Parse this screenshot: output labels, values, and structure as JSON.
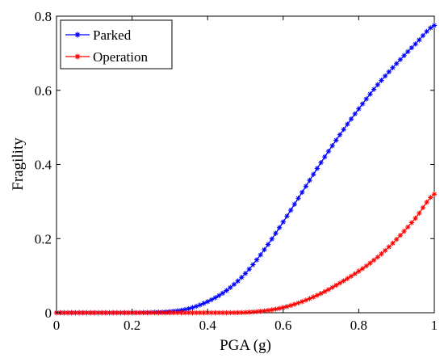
{
  "chart_data": {
    "type": "line",
    "xlabel": "PGA (g)",
    "ylabel": "Fragility",
    "xlim": [
      0,
      1
    ],
    "ylim": [
      0,
      0.8
    ],
    "xticks": [
      "0",
      "0.2",
      "0.4",
      "0.6",
      "0.8",
      "1"
    ],
    "yticks": [
      "0",
      "0.2",
      "0.4",
      "0.6",
      "0.8"
    ],
    "grid": false,
    "legend_position": "top-left",
    "x": [
      0.0,
      0.05,
      0.1,
      0.15,
      0.2,
      0.25,
      0.3,
      0.35,
      0.4,
      0.45,
      0.5,
      0.55,
      0.6,
      0.65,
      0.7,
      0.75,
      0.8,
      0.85,
      0.9,
      0.95,
      1.0
    ],
    "series": [
      {
        "name": "Parked",
        "color": "#0000ff",
        "marker": "star",
        "values": [
          0,
          0,
          0,
          0,
          0,
          0.001,
          0.003,
          0.011,
          0.03,
          0.06,
          0.106,
          0.17,
          0.245,
          0.325,
          0.405,
          0.48,
          0.55,
          0.615,
          0.672,
          0.725,
          0.775
        ]
      },
      {
        "name": "Operation",
        "color": "#ff0000",
        "marker": "star",
        "values": [
          0,
          0,
          0,
          0,
          0,
          0,
          0,
          0,
          0,
          0,
          0.001,
          0.005,
          0.014,
          0.03,
          0.052,
          0.08,
          0.112,
          0.15,
          0.198,
          0.255,
          0.32
        ]
      }
    ]
  }
}
